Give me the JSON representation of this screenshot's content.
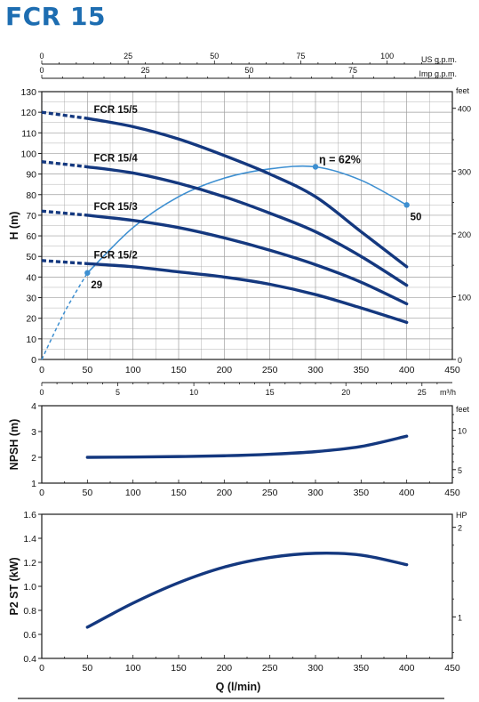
{
  "title": "FCR 15",
  "colors": {
    "curve": "#14387f",
    "efficiency": "#3d8fd1",
    "grid": "#9e9e9e",
    "frame": "#1a1a1a",
    "title": "#1d6db1"
  },
  "chart_data": [
    {
      "type": "line",
      "panel": "head",
      "ylabel": "H (m)",
      "xlim": [
        0,
        450
      ],
      "ylim": [
        0,
        130
      ],
      "xticks": [
        0,
        50,
        100,
        150,
        200,
        250,
        300,
        350,
        400,
        450
      ],
      "yticks": [
        0,
        10,
        20,
        30,
        40,
        50,
        60,
        70,
        80,
        90,
        100,
        110,
        120,
        130
      ],
      "grid": true,
      "top_axes": [
        {
          "label": "US g.p.m.",
          "ticks": [
            0,
            25,
            50,
            75,
            100
          ],
          "lpm_per_unit": 3.785
        },
        {
          "label": "Imp g.p.m.",
          "ticks": [
            0,
            25,
            50,
            75
          ],
          "lpm_per_unit": 4.546
        }
      ],
      "bottom_secondary_axis": {
        "label": "m³/h",
        "ticks": [
          0,
          5,
          10,
          15,
          20,
          25
        ],
        "lpm_per_unit": 16.667
      },
      "right_axis": {
        "label": "feet",
        "ticks": [
          0,
          100,
          200,
          300,
          400
        ],
        "m_per_unit": 0.3048
      },
      "series": [
        {
          "name": "FCR 15/5",
          "x": [
            50,
            100,
            150,
            200,
            250,
            300,
            350,
            400
          ],
          "y": [
            117,
            113,
            107,
            99,
            90,
            79,
            62,
            45
          ],
          "dashed_start": {
            "x": [
              0,
              50
            ],
            "y": [
              120,
              117
            ]
          }
        },
        {
          "name": "FCR 15/4",
          "x": [
            50,
            100,
            150,
            200,
            250,
            300,
            350,
            400
          ],
          "y": [
            93.5,
            90.5,
            85.5,
            79,
            71,
            62,
            50,
            36
          ],
          "dashed_start": {
            "x": [
              0,
              50
            ],
            "y": [
              96,
              93.5
            ]
          }
        },
        {
          "name": "FCR 15/3",
          "x": [
            50,
            100,
            150,
            200,
            250,
            300,
            350,
            400
          ],
          "y": [
            70,
            67.5,
            64,
            59,
            53,
            46,
            37.5,
            27
          ],
          "dashed_start": {
            "x": [
              0,
              50
            ],
            "y": [
              72,
              70
            ]
          }
        },
        {
          "name": "FCR 15/2",
          "x": [
            50,
            100,
            150,
            200,
            250,
            300,
            350,
            400
          ],
          "y": [
            46.5,
            45,
            42.5,
            40,
            36.5,
            31.5,
            25,
            18
          ],
          "dashed_start": {
            "x": [
              0,
              50
            ],
            "y": [
              48,
              46.5
            ]
          }
        }
      ],
      "efficiency_curve": {
        "label": "η = 62%",
        "x": [
          50,
          100,
          150,
          200,
          250,
          300,
          350,
          400
        ],
        "y": [
          42,
          64,
          79,
          88,
          92.5,
          93.5,
          87,
          75
        ],
        "dashed_start": {
          "x": [
            0,
            25,
            50
          ],
          "y": [
            0,
            23,
            42
          ]
        },
        "points": [
          {
            "x": 50,
            "y": 42,
            "label": "29"
          },
          {
            "x": 300,
            "y": 93.5,
            "label": ""
          },
          {
            "x": 400,
            "y": 75,
            "label": "50"
          }
        ]
      }
    },
    {
      "type": "line",
      "panel": "npsh",
      "ylabel": "NPSH (m)",
      "xlim": [
        0,
        450
      ],
      "ylim": [
        1,
        4
      ],
      "xticks": [
        0,
        50,
        100,
        150,
        200,
        250,
        300,
        350,
        400,
        450
      ],
      "yticks": [
        1,
        2,
        3,
        4
      ],
      "grid": false,
      "right_axis": {
        "label": "feet",
        "ticks": [
          5,
          10
        ],
        "m_per_unit": 0.3048
      },
      "series": [
        {
          "name": "",
          "x": [
            50,
            100,
            150,
            200,
            250,
            300,
            350,
            400
          ],
          "y": [
            2.0,
            2.01,
            2.03,
            2.06,
            2.12,
            2.22,
            2.42,
            2.82
          ]
        }
      ]
    },
    {
      "type": "line",
      "panel": "power",
      "ylabel": "P2 ST (kW)",
      "xlabel": "Q (l/min)",
      "xlim": [
        0,
        450
      ],
      "ylim": [
        0.4,
        1.6
      ],
      "xticks": [
        0,
        50,
        100,
        150,
        200,
        250,
        300,
        350,
        400,
        450
      ],
      "yticks": [
        0.4,
        0.6,
        0.8,
        1.0,
        1.2,
        1.4,
        1.6
      ],
      "ytick_labels": [
        "0.4",
        "0.6",
        "0.8",
        "1.0",
        "1.2",
        "1.4",
        "1.6"
      ],
      "grid": false,
      "right_axis": {
        "label": "HP",
        "ticks": [
          1,
          2
        ],
        "kw_per_unit": 0.7457
      },
      "series": [
        {
          "name": "",
          "x": [
            50,
            100,
            150,
            200,
            250,
            300,
            350,
            400
          ],
          "y": [
            0.66,
            0.86,
            1.03,
            1.16,
            1.24,
            1.275,
            1.26,
            1.18
          ]
        }
      ]
    }
  ]
}
